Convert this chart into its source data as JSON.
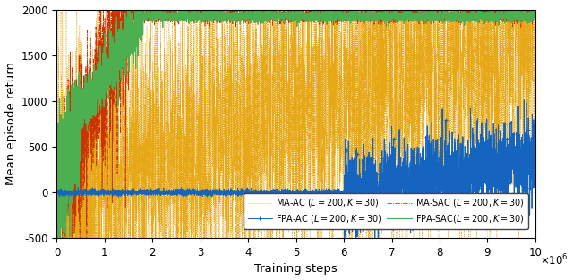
{
  "title": "",
  "xlabel": "Training steps",
  "ylabel": "Mean episode return",
  "xlim": [
    0,
    10000000.0
  ],
  "ylim": [
    -500,
    2000
  ],
  "yticks": [
    -500,
    0,
    500,
    1000,
    1500,
    2000
  ],
  "xticks": [
    0,
    1000000.0,
    2000000.0,
    3000000.0,
    4000000.0,
    5000000.0,
    6000000.0,
    7000000.0,
    8000000.0,
    9000000.0,
    10000000.0
  ],
  "xtick_labels": [
    "0",
    "1",
    "2",
    "3",
    "4",
    "5",
    "6",
    "7",
    "8",
    "9",
    "10"
  ],
  "colors": {
    "MA_AC": "#E6A817",
    "MA_SAC": "#CC3300",
    "FPA_AC": "#1565C0",
    "FPA_SAC": "#4CAF50"
  },
  "legend": {
    "MA_AC": "MA-AC ($L=200, K=30$)",
    "MA_SAC": "MA-SAC ($L=200, K=30$)",
    "FPA_AC": "FPA-AC ($L=200, K=30$)",
    "FPA_SAC": "FPA-SAC($L=200, K=30$)"
  },
  "figsize": [
    6.4,
    3.13
  ],
  "dpi": 100
}
